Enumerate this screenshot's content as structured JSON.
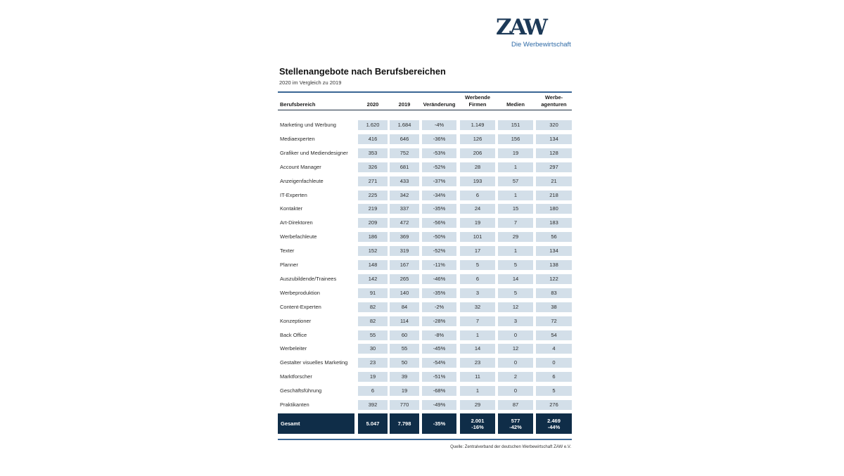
{
  "logo": {
    "wordmark": "ZAW",
    "tagline": "Die Werbewirtschaft"
  },
  "colors": {
    "navy": "#0f2d48",
    "cell_background": "#d3dfe9",
    "rule": "#3a6694",
    "tagline": "#2e6aa6"
  },
  "chart_data": {
    "type": "table",
    "title": "Stellenangebote nach Berufsbereichen",
    "subtitle": "2020 im Vergleich zu 2019",
    "columns": [
      "Berufsbereich",
      "2020",
      "2019",
      "Veränderung",
      "Werbende\nFirmen",
      "Medien",
      "Werbe-\nagenturen"
    ],
    "rows": [
      {
        "label": "Marketing und Werbung",
        "cells": [
          "1.620",
          "1.684",
          "-4%",
          "1.149",
          "151",
          "320"
        ]
      },
      {
        "label": "Mediaexperten",
        "cells": [
          "416",
          "646",
          "-36%",
          "126",
          "156",
          "134"
        ]
      },
      {
        "label": "Grafiker und Mediendesigner",
        "cells": [
          "353",
          "752",
          "-53%",
          "206",
          "19",
          "128"
        ]
      },
      {
        "label": "Account Manager",
        "cells": [
          "326",
          "681",
          "-52%",
          "28",
          "1",
          "297"
        ]
      },
      {
        "label": "Anzeigenfachleute",
        "cells": [
          "271",
          "433",
          "-37%",
          "193",
          "57",
          "21"
        ]
      },
      {
        "label": "IT-Experten",
        "cells": [
          "225",
          "342",
          "-34%",
          "6",
          "1",
          "218"
        ]
      },
      {
        "label": "Kontakter",
        "cells": [
          "219",
          "337",
          "-35%",
          "24",
          "15",
          "180"
        ]
      },
      {
        "label": "Art-Direktoren",
        "cells": [
          "209",
          "472",
          "-56%",
          "19",
          "7",
          "183"
        ]
      },
      {
        "label": "Werbefachleute",
        "cells": [
          "186",
          "369",
          "-50%",
          "101",
          "29",
          "56"
        ]
      },
      {
        "label": "Texter",
        "cells": [
          "152",
          "319",
          "-52%",
          "17",
          "1",
          "134"
        ]
      },
      {
        "label": "Planner",
        "cells": [
          "148",
          "167",
          "-11%",
          "5",
          "5",
          "138"
        ]
      },
      {
        "label": "Auszubildende/Trainees",
        "cells": [
          "142",
          "265",
          "-46%",
          "6",
          "14",
          "122"
        ]
      },
      {
        "label": "Werbeproduktion",
        "cells": [
          "91",
          "140",
          "-35%",
          "3",
          "5",
          "83"
        ]
      },
      {
        "label": "Content-Experten",
        "cells": [
          "82",
          "84",
          "-2%",
          "32",
          "12",
          "38"
        ]
      },
      {
        "label": "Konzeptioner",
        "cells": [
          "82",
          "114",
          "-28%",
          "7",
          "3",
          "72"
        ]
      },
      {
        "label": "Back Office",
        "cells": [
          "55",
          "60",
          "-8%",
          "1",
          "0",
          "54"
        ]
      },
      {
        "label": "Werbeleiter",
        "cells": [
          "30",
          "55",
          "-45%",
          "14",
          "12",
          "4"
        ]
      },
      {
        "label": "Gestalter visuelles Marketing",
        "cells": [
          "23",
          "50",
          "-54%",
          "23",
          "0",
          "0"
        ]
      },
      {
        "label": "Marktforscher",
        "cells": [
          "19",
          "39",
          "-51%",
          "11",
          "2",
          "6"
        ]
      },
      {
        "label": "Geschäftsführung",
        "cells": [
          "6",
          "19",
          "-68%",
          "1",
          "0",
          "5"
        ]
      },
      {
        "label": "Praktikanten",
        "cells": [
          "392",
          "770",
          "-49%",
          "29",
          "87",
          "276"
        ]
      }
    ],
    "total": {
      "label": "Gesamt",
      "cells": [
        {
          "value": "5.047"
        },
        {
          "value": "7.798"
        },
        {
          "value": "-35%"
        },
        {
          "value": "2.001",
          "change": "-16%"
        },
        {
          "value": "577",
          "change": "-42%"
        },
        {
          "value": "2.469",
          "change": "-44%"
        }
      ]
    },
    "source": "Quelle: Zentralverband der deutschen Werbewirtschaft ZAW e.V."
  }
}
